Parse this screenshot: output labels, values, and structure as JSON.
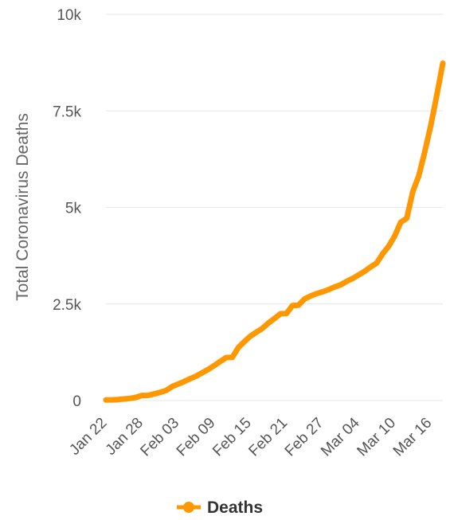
{
  "chart_data": {
    "type": "line",
    "title": "",
    "xlabel": "",
    "ylabel": "Total Coronavirus Deaths",
    "ylim": [
      0,
      10000
    ],
    "yticks": [
      0,
      2500,
      5000,
      7500,
      10000
    ],
    "ytick_labels": [
      "0",
      "2.5k",
      "5k",
      "7.5k",
      "10k"
    ],
    "xtick_labels": [
      "Jan 22",
      "Jan 28",
      "Feb 03",
      "Feb 09",
      "Feb 15",
      "Feb 21",
      "Feb 27",
      "Mar 04",
      "Mar 10",
      "Mar 16"
    ],
    "grid": "horizontal",
    "legend": "bottom-center",
    "colors": {
      "series": "#ff9800",
      "grid": "#e6e6e6"
    },
    "series": [
      {
        "name": "Deaths",
        "x": [
          "Jan 22",
          "Jan 23",
          "Jan 24",
          "Jan 25",
          "Jan 26",
          "Jan 27",
          "Jan 28",
          "Jan 29",
          "Jan 30",
          "Jan 31",
          "Feb 01",
          "Feb 02",
          "Feb 03",
          "Feb 04",
          "Feb 05",
          "Feb 06",
          "Feb 07",
          "Feb 08",
          "Feb 09",
          "Feb 10",
          "Feb 11",
          "Feb 12",
          "Feb 13",
          "Feb 14",
          "Feb 15",
          "Feb 16",
          "Feb 17",
          "Feb 18",
          "Feb 19",
          "Feb 20",
          "Feb 21",
          "Feb 22",
          "Feb 23",
          "Feb 24",
          "Feb 25",
          "Feb 26",
          "Feb 27",
          "Feb 28",
          "Feb 29",
          "Mar 01",
          "Mar 02",
          "Mar 03",
          "Mar 04",
          "Mar 05",
          "Mar 06",
          "Mar 07",
          "Mar 08",
          "Mar 09",
          "Mar 10",
          "Mar 11",
          "Mar 12",
          "Mar 13",
          "Mar 14",
          "Mar 15",
          "Mar 16",
          "Mar 17",
          "Mar 18"
        ],
        "values": [
          17,
          18,
          26,
          42,
          56,
          82,
          131,
          133,
          171,
          213,
          259,
          362,
          426,
          492,
          564,
          634,
          719,
          806,
          906,
          1013,
          1113,
          1118,
          1371,
          1523,
          1666,
          1770,
          1868,
          2007,
          2122,
          2247,
          2251,
          2458,
          2469,
          2629,
          2708,
          2770,
          2814,
          2872,
          2941,
          2996,
          3085,
          3160,
          3254,
          3348,
          3460,
          3558,
          3803,
          3996,
          4262,
          4615,
          4720,
          5404,
          5819,
          6440,
          7126,
          7905,
          8733
        ]
      }
    ]
  }
}
